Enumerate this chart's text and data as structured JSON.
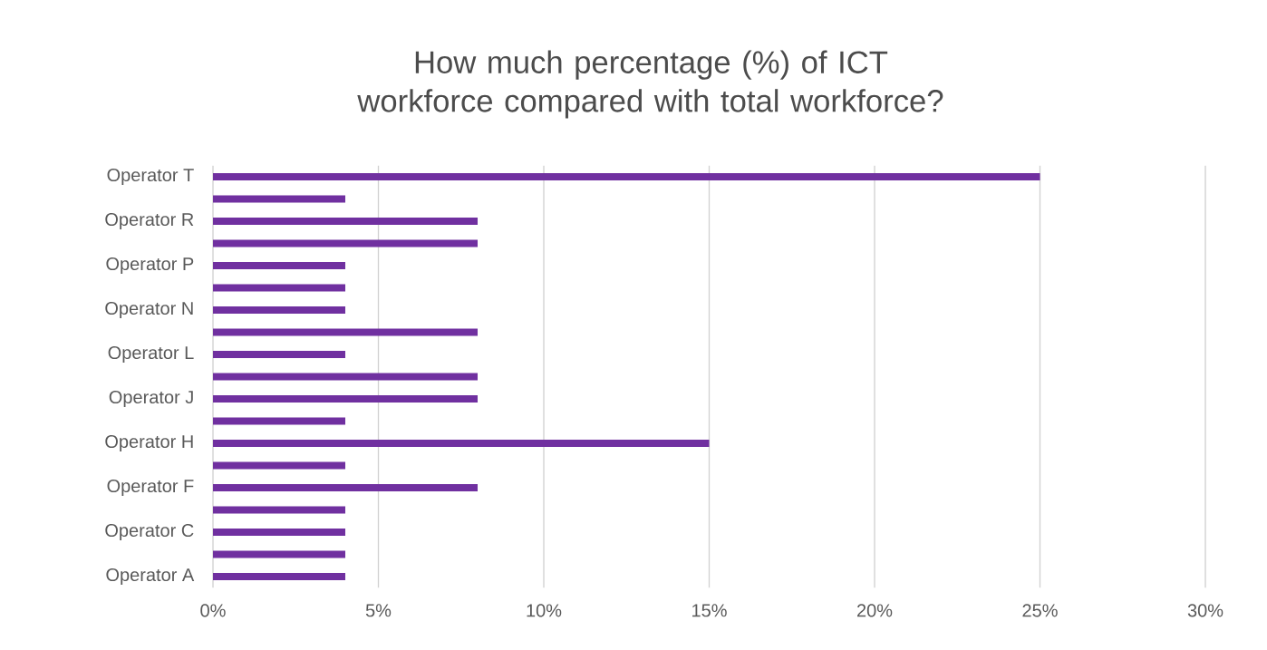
{
  "chart_data": {
    "type": "bar",
    "orientation": "horizontal",
    "title": "How much percentage (%) of ICT workforce compared with total workforce?",
    "categories": [
      "Operator  T",
      null,
      "Operator  R",
      null,
      "Operator  P",
      null,
      "Operator  N",
      null,
      "Operator  L",
      null,
      "Operator  J",
      null,
      "Operator  H",
      null,
      "Operator  F",
      null,
      "Operator  C",
      null,
      "Operator A"
    ],
    "values": [
      25,
      4,
      8,
      8,
      4,
      4,
      4,
      8,
      4,
      8,
      8,
      4,
      15,
      4,
      8,
      4,
      4,
      4,
      4
    ],
    "color": "#7030a0",
    "xlim": [
      0,
      30
    ],
    "xticks": [
      {
        "value": 0,
        "label": "0%"
      },
      {
        "value": 5,
        "label": "5%"
      },
      {
        "value": 10,
        "label": "10%"
      },
      {
        "value": 15,
        "label": "15%"
      },
      {
        "value": 20,
        "label": "20%"
      },
      {
        "value": 25,
        "label": "25%"
      },
      {
        "value": 30,
        "label": "30%"
      }
    ],
    "grid": "x"
  }
}
